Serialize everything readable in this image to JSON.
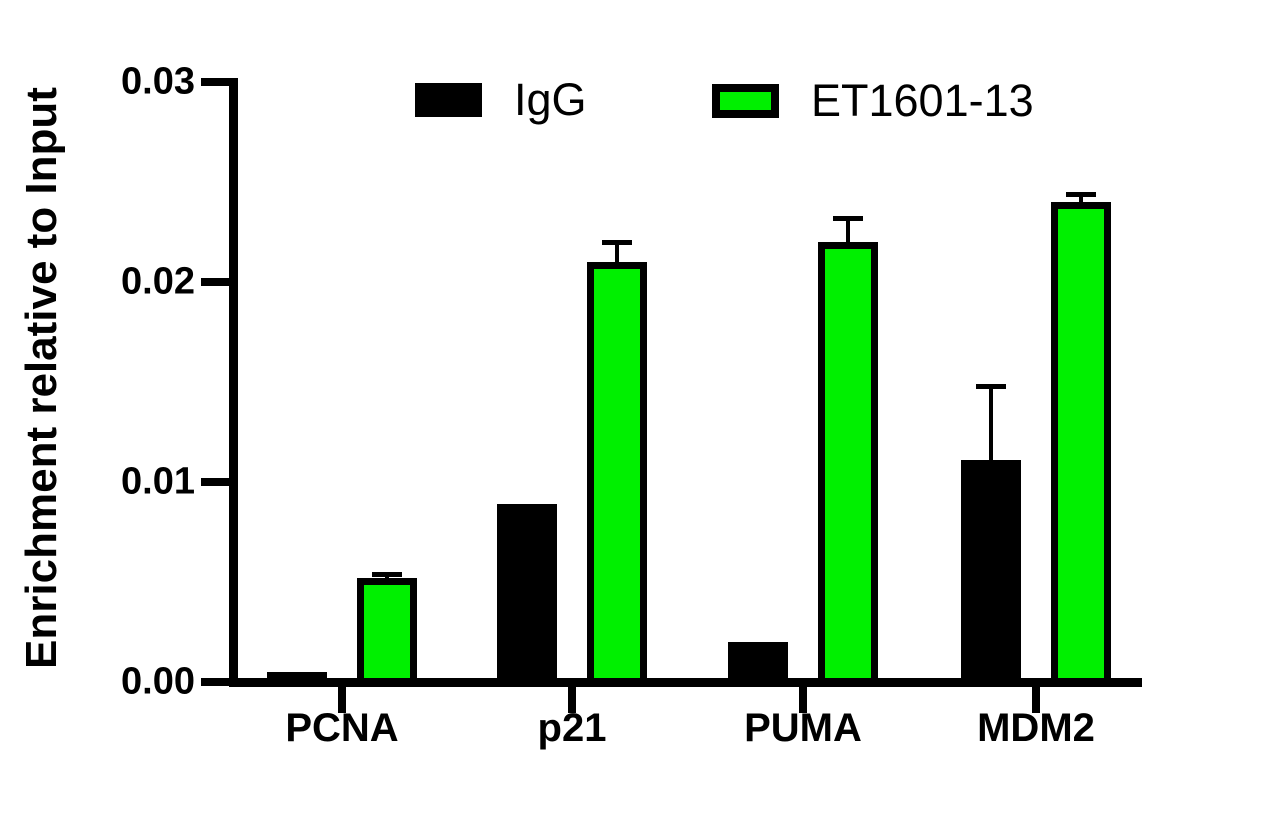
{
  "chart_data": {
    "type": "bar",
    "title": "",
    "ylabel": "Enrichment relative to Input",
    "xlabel": "",
    "ylim": [
      0,
      0.03
    ],
    "yticks": [
      {
        "value": 0.0,
        "label": "0.00"
      },
      {
        "value": 0.01,
        "label": "0.01"
      },
      {
        "value": 0.02,
        "label": "0.02"
      },
      {
        "value": 0.03,
        "label": "0.03"
      }
    ],
    "categories": [
      "PCNA",
      "p21",
      "PUMA",
      "MDM2"
    ],
    "series": [
      {
        "name": "IgG",
        "color": "#000000",
        "values": [
          0.0005,
          0.0089,
          0.002,
          0.0111
        ],
        "errors": [
          0,
          0,
          0,
          0.0038
        ]
      },
      {
        "name": "ET1601-13",
        "color": "#00f000",
        "values": [
          0.0052,
          0.021,
          0.022,
          0.024
        ],
        "errors": [
          0.0003,
          0.0011,
          0.0013,
          0.0005
        ]
      }
    ],
    "error_bars": "upper-only",
    "legend_position": "top",
    "grid": false,
    "background": "#ffffff"
  }
}
